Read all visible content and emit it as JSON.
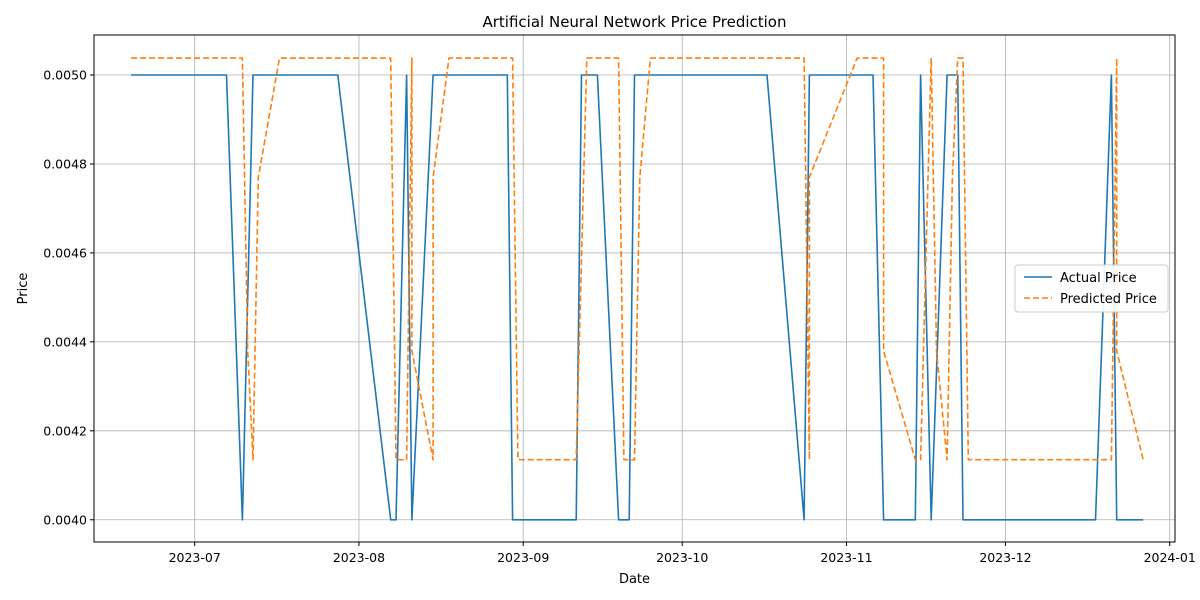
{
  "chart_data": {
    "type": "line",
    "title": "Artificial Neural Network Price Prediction",
    "xlabel": "Date",
    "ylabel": "Price",
    "xlim": [
      "2023-06-12",
      "2024-01-02"
    ],
    "ylim": [
      0.00395,
      0.00509
    ],
    "grid": true,
    "legend_position": "center-right",
    "x_ticks": [
      "2023-07-01",
      "2023-08-01",
      "2023-09-01",
      "2023-10-01",
      "2023-11-01",
      "2023-12-01",
      "2024-01-01"
    ],
    "x_tick_labels": [
      "2023-07",
      "2023-08",
      "2023-09",
      "2023-10",
      "2023-11",
      "2023-12",
      "2024-01"
    ],
    "y_ticks": [
      0.004,
      0.0042,
      0.0044,
      0.0046,
      0.0048,
      0.005
    ],
    "y_tick_labels": [
      "0.0040",
      "0.0042",
      "0.0044",
      "0.0046",
      "0.0048",
      "0.0050"
    ],
    "series": [
      {
        "name": "Actual Price",
        "color": "#1f77b4",
        "style": "solid",
        "points": [
          [
            "2023-06-19",
            0.005
          ],
          [
            "2023-07-07",
            0.005
          ],
          [
            "2023-07-10",
            0.004
          ],
          [
            "2023-07-12",
            0.005
          ],
          [
            "2023-07-28",
            0.005
          ],
          [
            "2023-08-07",
            0.004
          ],
          [
            "2023-08-08",
            0.004
          ],
          [
            "2023-08-10",
            0.005
          ],
          [
            "2023-08-11",
            0.004
          ],
          [
            "2023-08-15",
            0.005
          ],
          [
            "2023-08-29",
            0.005
          ],
          [
            "2023-08-30",
            0.004
          ],
          [
            "2023-09-11",
            0.004
          ],
          [
            "2023-09-12",
            0.005
          ],
          [
            "2023-09-15",
            0.005
          ],
          [
            "2023-09-19",
            0.004
          ],
          [
            "2023-09-21",
            0.004
          ],
          [
            "2023-09-22",
            0.005
          ],
          [
            "2023-10-17",
            0.005
          ],
          [
            "2023-10-24",
            0.004
          ],
          [
            "2023-10-25",
            0.005
          ],
          [
            "2023-11-06",
            0.005
          ],
          [
            "2023-11-08",
            0.004
          ],
          [
            "2023-11-14",
            0.004
          ],
          [
            "2023-11-15",
            0.005
          ],
          [
            "2023-11-17",
            0.004
          ],
          [
            "2023-11-20",
            0.005
          ],
          [
            "2023-11-22",
            0.005
          ],
          [
            "2023-11-23",
            0.004
          ],
          [
            "2023-12-18",
            0.004
          ],
          [
            "2023-12-21",
            0.005
          ],
          [
            "2023-12-22",
            0.004
          ],
          [
            "2023-12-27",
            0.004
          ]
        ]
      },
      {
        "name": "Predicted Price",
        "color": "#ff7f0e",
        "style": "dashed",
        "points": [
          [
            "2023-06-19",
            0.005038
          ],
          [
            "2023-07-10",
            0.005038
          ],
          [
            "2023-07-11",
            0.00438
          ],
          [
            "2023-07-12",
            0.004135
          ],
          [
            "2023-07-13",
            0.00477
          ],
          [
            "2023-07-17",
            0.005038
          ],
          [
            "2023-08-07",
            0.005038
          ],
          [
            "2023-08-08",
            0.004135
          ],
          [
            "2023-08-10",
            0.004135
          ],
          [
            "2023-08-11",
            0.005038
          ],
          [
            "2023-08-11",
            0.00438
          ],
          [
            "2023-08-15",
            0.004135
          ],
          [
            "2023-08-15",
            0.00477
          ],
          [
            "2023-08-18",
            0.005038
          ],
          [
            "2023-08-30",
            0.005038
          ],
          [
            "2023-08-31",
            0.004135
          ],
          [
            "2023-09-11",
            0.004135
          ],
          [
            "2023-09-13",
            0.005038
          ],
          [
            "2023-09-19",
            0.005038
          ],
          [
            "2023-09-20",
            0.004135
          ],
          [
            "2023-09-22",
            0.004135
          ],
          [
            "2023-09-23",
            0.00477
          ],
          [
            "2023-09-25",
            0.005038
          ],
          [
            "2023-10-24",
            0.005038
          ],
          [
            "2023-10-25",
            0.004135
          ],
          [
            "2023-10-25",
            0.00477
          ],
          [
            "2023-11-03",
            0.005038
          ],
          [
            "2023-11-08",
            0.005038
          ],
          [
            "2023-11-08",
            0.00438
          ],
          [
            "2023-11-14",
            0.004135
          ],
          [
            "2023-11-15",
            0.004135
          ],
          [
            "2023-11-17",
            0.005038
          ],
          [
            "2023-11-18",
            0.00438
          ],
          [
            "2023-11-20",
            0.004135
          ],
          [
            "2023-11-21",
            0.00477
          ],
          [
            "2023-11-22",
            0.005038
          ],
          [
            "2023-11-23",
            0.005038
          ],
          [
            "2023-11-24",
            0.004135
          ],
          [
            "2023-12-21",
            0.004135
          ],
          [
            "2023-12-22",
            0.005038
          ],
          [
            "2023-12-22",
            0.00438
          ],
          [
            "2023-12-27",
            0.004135
          ]
        ]
      }
    ]
  }
}
